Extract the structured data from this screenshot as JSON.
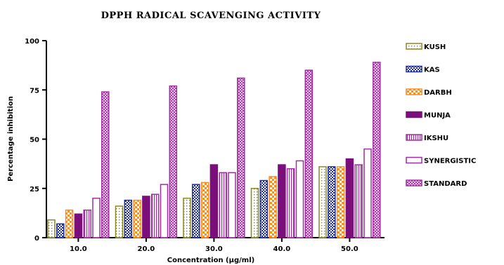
{
  "chart_data": {
    "type": "bar",
    "title": "DPPH RADICAL SCAVENGING ACTIVITY",
    "xlabel": "Concentration (µg/ml)",
    "ylabel": "Percentage inhibition",
    "categories": [
      "10.0",
      "20.0",
      "30.0",
      "40.0",
      "50.0"
    ],
    "ylim": [
      0,
      100
    ],
    "yticks": [
      "0",
      "25",
      "50",
      "75",
      "100"
    ],
    "legend_position": "right",
    "series": [
      {
        "name": "KUSH",
        "values": [
          9,
          16,
          20,
          25,
          36
        ],
        "color": "#8a8a1e",
        "pattern": "open-dotted"
      },
      {
        "name": "KAS",
        "values": [
          7,
          19,
          27,
          29,
          36
        ],
        "color": "#1f2f9a",
        "pattern": "checker"
      },
      {
        "name": "DARBH",
        "values": [
          14,
          19,
          28,
          31,
          36
        ],
        "color": "#ff8c1a",
        "pattern": "checker"
      },
      {
        "name": "MUNJA",
        "values": [
          12,
          21,
          37,
          37,
          40
        ],
        "color": "#7a0e7a",
        "pattern": "solid"
      },
      {
        "name": "IKSHU",
        "values": [
          14,
          22,
          33,
          35,
          37
        ],
        "color": "#a32ca3",
        "pattern": "vertical-lines"
      },
      {
        "name": "SYNERGISTIC",
        "values": [
          20,
          27,
          33,
          39,
          45
        ],
        "color": "#a32ca3",
        "pattern": "open"
      },
      {
        "name": "STANDARD",
        "values": [
          74,
          77,
          81,
          85,
          89
        ],
        "color": "#a32ca3",
        "pattern": "crosshatch"
      }
    ]
  }
}
